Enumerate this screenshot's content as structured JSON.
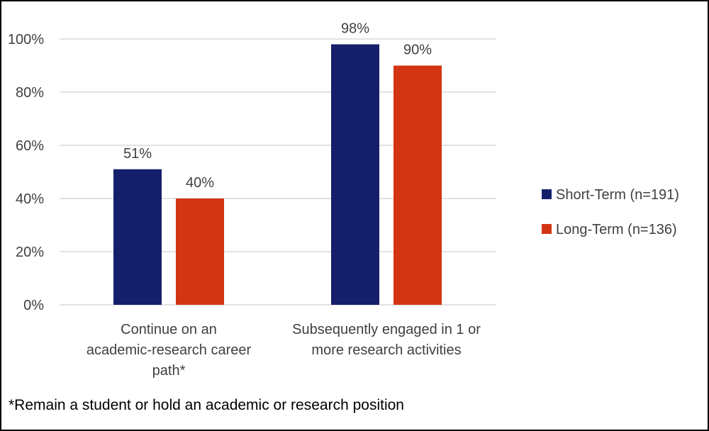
{
  "chart_data": {
    "type": "bar",
    "title": "",
    "xlabel": "",
    "ylabel": "",
    "categories": [
      [
        "Continue on an",
        "academic-research career",
        "path*"
      ],
      [
        "Subsequently engaged in 1 or",
        "more research activities"
      ]
    ],
    "series": [
      {
        "name": "Short-Term (n=191)",
        "color": "#161F6B",
        "values": [
          51,
          98
        ],
        "labels": [
          "51%",
          "98%"
        ]
      },
      {
        "name": "Long-Term (n=136)",
        "color": "#D33512",
        "values": [
          40,
          90
        ],
        "labels": [
          "40%",
          "90%"
        ]
      }
    ],
    "ylim": [
      0,
      100
    ],
    "yticks": [
      0,
      20,
      40,
      60,
      80,
      100
    ],
    "ytick_labels": [
      "0%",
      "20%",
      "40%",
      "60%",
      "80%",
      "100%"
    ],
    "grid": true,
    "legend_position": "right"
  },
  "footnote": "*Remain a student or hold an academic or research position"
}
